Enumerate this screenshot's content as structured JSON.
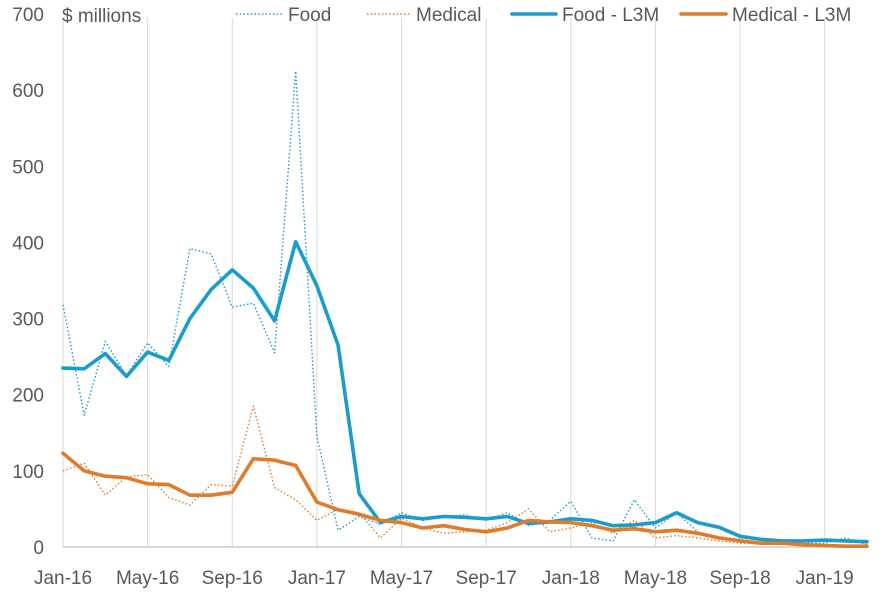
{
  "chart_data": {
    "type": "line",
    "unit_label": "$ millions",
    "ylim": [
      0,
      700
    ],
    "yticks": [
      0,
      100,
      200,
      300,
      400,
      500,
      600,
      700
    ],
    "x_tick_labels": [
      "Jan-16",
      "May-16",
      "Sep-16",
      "Jan-17",
      "May-17",
      "Sep-17",
      "Jan-18",
      "May-18",
      "Sep-18",
      "Jan-19"
    ],
    "x_tick_indices": [
      0,
      4,
      8,
      12,
      16,
      20,
      24,
      28,
      32,
      36
    ],
    "n_points": 39,
    "legend_position": "top",
    "series": [
      {
        "name": "Food",
        "color": "#1a9dcc",
        "style": "dotted",
        "values": [
          318,
          173,
          270,
          225,
          268,
          237,
          392,
          385,
          315,
          320,
          255,
          625,
          145,
          22,
          40,
          30,
          45,
          35,
          40,
          42,
          35,
          45,
          28,
          35,
          60,
          12,
          8,
          62,
          25,
          45,
          20,
          12,
          10,
          5,
          8,
          5,
          5,
          12,
          3
        ]
      },
      {
        "name": "Medical",
        "color": "#e07b2a",
        "style": "dotted",
        "values": [
          100,
          110,
          68,
          92,
          95,
          65,
          55,
          82,
          80,
          185,
          78,
          62,
          35,
          50,
          45,
          12,
          38,
          25,
          18,
          20,
          22,
          32,
          50,
          20,
          25,
          32,
          18,
          35,
          12,
          15,
          12,
          8,
          5,
          5,
          4,
          3,
          2,
          1,
          1
        ]
      },
      {
        "name": "Food - L3M",
        "color": "#1a9dcc",
        "style": "solid",
        "values": [
          235,
          234,
          254,
          224,
          256,
          245,
          300,
          338,
          364,
          340,
          297,
          401,
          343,
          265,
          70,
          32,
          40,
          37,
          40,
          39,
          37,
          40,
          31,
          33,
          37,
          35,
          28,
          29,
          32,
          45,
          32,
          26,
          14,
          10,
          8,
          8,
          9,
          8,
          7
        ]
      },
      {
        "name": "Medical - L3M",
        "color": "#e07b2a",
        "style": "solid",
        "values": [
          123,
          100,
          93,
          91,
          83,
          82,
          68,
          68,
          72,
          116,
          114,
          107,
          59,
          49,
          43,
          35,
          32,
          25,
          28,
          23,
          20,
          25,
          35,
          33,
          32,
          28,
          22,
          24,
          20,
          22,
          18,
          12,
          8,
          5,
          5,
          3,
          2,
          1,
          1
        ]
      }
    ]
  }
}
